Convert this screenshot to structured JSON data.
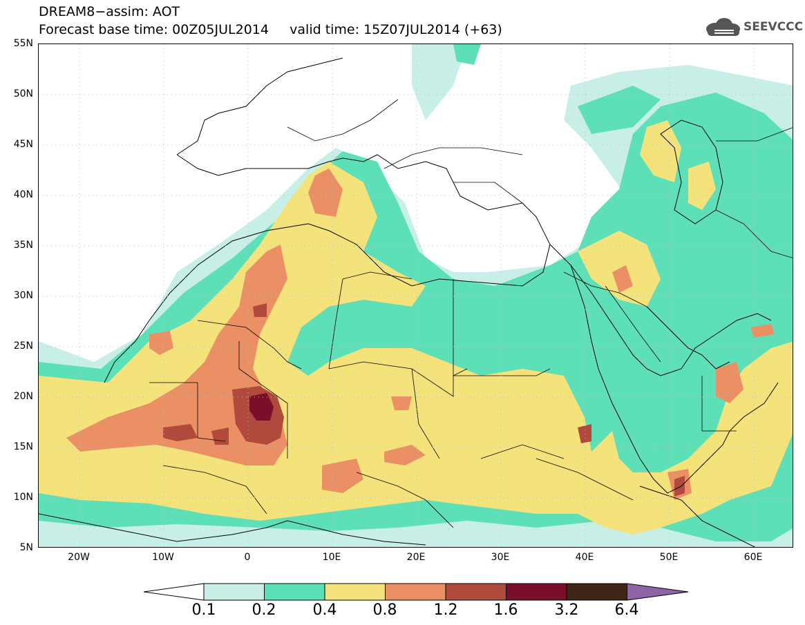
{
  "header": {
    "title_line1": "DREAM8−assim: AOT",
    "title_line2": "Forecast base time: 00Z05JUL2014     valid time: 15Z07JUL2014 (+63)"
  },
  "logo": {
    "text": "SEEVCCC",
    "icon": "cloud-icon"
  },
  "axes": {
    "lat_labels": [
      "55N",
      "50N",
      "45N",
      "40N",
      "35N",
      "30N",
      "25N",
      "20N",
      "15N",
      "10N",
      "5N"
    ],
    "lon_labels": [
      "20W",
      "10W",
      "0",
      "10E",
      "20E",
      "30E",
      "40E",
      "50E",
      "60E"
    ]
  },
  "colorbar": {
    "labels": [
      "0.1",
      "0.2",
      "0.4",
      "0.8",
      "1.2",
      "1.6",
      "3.2",
      "6.4"
    ],
    "colors": [
      "#c7efe7",
      "#5ddfb8",
      "#f4e27a",
      "#ea9064",
      "#b04a3c",
      "#7b0f2a",
      "#3e2617",
      "#8e65a4"
    ]
  },
  "map_colors": {
    "level1": "#c7efe7",
    "level2": "#5ddfb8",
    "level3": "#f4e27a",
    "level4": "#ea9064",
    "level5": "#b04a3c",
    "level6": "#7b0f2a"
  }
}
